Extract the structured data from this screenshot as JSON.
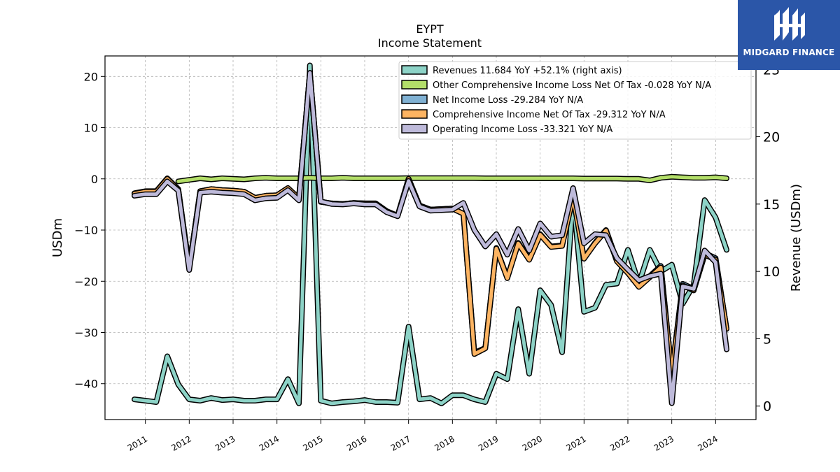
{
  "brand": {
    "name": "MIDGARD FINANCE",
    "color": "#2b56a8"
  },
  "chart_data": {
    "type": "line",
    "title": "EYPT",
    "subtitle": "Income Statement",
    "ylabel": "USDm",
    "ylabel_right": "Revenue (USDm)",
    "ylim": [
      -47,
      24
    ],
    "ylim_right": [
      -1,
      26
    ],
    "yticks": [
      -40,
      -30,
      -20,
      -10,
      0,
      10,
      20
    ],
    "yticks_right": [
      0,
      5,
      10,
      15,
      20,
      25
    ],
    "xlim": [
      2010.08,
      2024.92
    ],
    "xticks": [
      2011,
      2012,
      2013,
      2014,
      2015,
      2016,
      2017,
      2018,
      2019,
      2020,
      2021,
      2022,
      2023,
      2024
    ],
    "grid": true,
    "legend_position": "top-right",
    "series": [
      {
        "name": "Revenues  11.684 YoY +52.1% (right axis)",
        "axis": "right",
        "color": "#8dd3c7",
        "x": [
          2010.75,
          2011.0,
          2011.25,
          2011.5,
          2011.75,
          2012.0,
          2012.25,
          2012.5,
          2012.75,
          2013.0,
          2013.25,
          2013.5,
          2013.75,
          2014.0,
          2014.25,
          2014.5,
          2014.75,
          2015.0,
          2015.25,
          2015.5,
          2015.75,
          2016.0,
          2016.25,
          2016.5,
          2016.75,
          2017.0,
          2017.25,
          2017.5,
          2017.75,
          2018.0,
          2018.25,
          2018.5,
          2018.75,
          2019.0,
          2019.25,
          2019.5,
          2019.75,
          2020.0,
          2020.25,
          2020.5,
          2020.75,
          2021.0,
          2021.25,
          2021.5,
          2021.75,
          2022.0,
          2022.25,
          2022.5,
          2022.75,
          2023.0,
          2023.25,
          2023.5,
          2023.75,
          2024.0,
          2024.25
        ],
        "values": [
          0.5,
          0.4,
          0.3,
          3.7,
          1.6,
          0.5,
          0.4,
          0.6,
          0.45,
          0.5,
          0.4,
          0.4,
          0.5,
          0.5,
          2.0,
          0.2,
          25.3,
          0.4,
          0.2,
          0.3,
          0.35,
          0.45,
          0.3,
          0.3,
          0.25,
          5.9,
          0.5,
          0.6,
          0.2,
          0.8,
          0.8,
          0.5,
          0.3,
          2.4,
          2.0,
          7.2,
          2.4,
          8.6,
          7.5,
          4.0,
          15.5,
          7.0,
          7.3,
          9.0,
          9.1,
          11.6,
          9.1,
          11.6,
          10.0,
          10.5,
          7.6,
          9.0,
          15.3,
          14.0,
          11.6
        ]
      },
      {
        "name": "Other Comprehensive Income Loss Net Of Tax  -0.028 YoY N/A",
        "axis": "left",
        "color": "#b3de69",
        "x": [
          2011.75,
          2012.0,
          2012.25,
          2012.5,
          2012.75,
          2013.0,
          2013.25,
          2013.5,
          2013.75,
          2014.0,
          2014.25,
          2014.5,
          2014.75,
          2015.0,
          2015.25,
          2015.5,
          2015.75,
          2016.0,
          2016.25,
          2016.5,
          2016.75,
          2017.0,
          2017.25,
          2017.5,
          2017.75,
          2018.0,
          2018.25,
          2018.5,
          2018.75,
          2019.0,
          2019.25,
          2019.5,
          2019.75,
          2020.0,
          2020.25,
          2020.5,
          2020.75,
          2021.0,
          2021.25,
          2021.5,
          2021.75,
          2022.0,
          2022.25,
          2022.5,
          2022.75,
          2023.0,
          2023.25,
          2023.5,
          2023.75,
          2024.0,
          2024.25
        ],
        "values": [
          -0.5,
          -0.2,
          0.1,
          -0.1,
          0.1,
          0.0,
          -0.1,
          0.1,
          0.2,
          0.1,
          0.1,
          0.1,
          0.2,
          0.1,
          0.1,
          0.2,
          0.1,
          0.1,
          0.1,
          0.1,
          0.1,
          0.15,
          0.15,
          0.15,
          0.15,
          0.15,
          0.15,
          0.15,
          0.1,
          0.1,
          0.1,
          0.1,
          0.1,
          0.1,
          0.1,
          0.1,
          0.1,
          0.05,
          0.05,
          0.05,
          0.05,
          0.0,
          0.0,
          -0.3,
          0.2,
          0.4,
          0.3,
          0.2,
          0.2,
          0.3,
          0.1
        ]
      },
      {
        "name": "Net Income Loss  -29.284 YoY N/A",
        "axis": "left",
        "color": "#80b1d3",
        "x": [
          2010.75,
          2011.0,
          2011.25,
          2011.5,
          2011.75,
          2012.0,
          2012.25,
          2012.5,
          2012.75,
          2013.0,
          2013.25,
          2013.5,
          2013.75,
          2014.0,
          2014.25,
          2014.5,
          2014.75,
          2015.0,
          2015.25,
          2015.5,
          2015.75,
          2016.0,
          2016.25,
          2016.5,
          2016.75,
          2017.0,
          2017.25,
          2017.5,
          2017.75,
          2018.0,
          2018.25,
          2018.5,
          2018.75,
          2019.0,
          2019.25,
          2019.5,
          2019.75,
          2020.0,
          2020.25,
          2020.5,
          2020.75,
          2021.0,
          2021.25,
          2021.5,
          2021.75,
          2022.0,
          2022.25,
          2022.5,
          2022.75,
          2023.0,
          2023.25,
          2023.5,
          2023.75,
          2024.0,
          2024.25
        ],
        "values": [
          -2.8,
          -2.4,
          -2.4,
          0.1,
          -2.0,
          -17.3,
          -2.4,
          -2.0,
          -2.2,
          -2.3,
          -2.5,
          -3.7,
          -3.3,
          -3.2,
          -1.8,
          -3.8,
          20.7,
          -4.5,
          -4.8,
          -4.9,
          -4.7,
          -4.8,
          -4.8,
          -6.3,
          -7.2,
          0.0,
          -5.2,
          -6.0,
          -5.9,
          -5.8,
          -6.8,
          -34.0,
          -33.0,
          -13.5,
          -19.3,
          -12.5,
          -15.7,
          -10.8,
          -13.2,
          -13.0,
          -3.4,
          -15.5,
          -12.5,
          -10.0,
          -16.0,
          -18.3,
          -21.0,
          -19.0,
          -17.0,
          -38.0,
          -20.5,
          -21.5,
          -14.5,
          -15.5,
          -29.3
        ]
      },
      {
        "name": "Comprehensive Income Net Of Tax  -29.312 YoY N/A",
        "axis": "left",
        "color": "#fdb462",
        "x": [
          2010.75,
          2011.0,
          2011.25,
          2011.5,
          2011.75,
          2012.0,
          2012.25,
          2012.5,
          2012.75,
          2013.0,
          2013.25,
          2013.5,
          2013.75,
          2014.0,
          2014.25,
          2014.5,
          2014.75,
          2015.0,
          2015.25,
          2015.5,
          2015.75,
          2016.0,
          2016.25,
          2016.5,
          2016.75,
          2017.0,
          2017.25,
          2017.5,
          2017.75,
          2018.0,
          2018.25,
          2018.5,
          2018.75,
          2019.0,
          2019.25,
          2019.5,
          2019.75,
          2020.0,
          2020.25,
          2020.5,
          2020.75,
          2021.0,
          2021.25,
          2021.5,
          2021.75,
          2022.0,
          2022.25,
          2022.5,
          2022.75,
          2023.0,
          2023.25,
          2023.5,
          2023.75,
          2024.0,
          2024.25
        ],
        "values": [
          -2.9,
          -2.5,
          -2.5,
          0.0,
          -2.1,
          -17.4,
          -2.4,
          -2.0,
          -2.2,
          -2.3,
          -2.5,
          -3.7,
          -3.3,
          -3.2,
          -1.8,
          -3.8,
          20.7,
          -4.5,
          -4.8,
          -4.9,
          -4.7,
          -4.8,
          -4.8,
          -6.3,
          -7.2,
          0.0,
          -5.2,
          -6.0,
          -5.9,
          -5.8,
          -6.8,
          -34.2,
          -33.1,
          -13.6,
          -19.4,
          -12.6,
          -15.8,
          -10.9,
          -13.3,
          -13.1,
          -3.5,
          -15.6,
          -12.6,
          -10.1,
          -16.1,
          -18.4,
          -21.1,
          -19.2,
          -17.3,
          -38.2,
          -20.8,
          -21.8,
          -14.8,
          -15.8,
          -29.3
        ]
      },
      {
        "name": "Operating Income Loss  -33.321 YoY N/A",
        "axis": "left",
        "color": "#bebada",
        "x": [
          2010.75,
          2011.0,
          2011.25,
          2011.5,
          2011.75,
          2012.0,
          2012.25,
          2012.5,
          2012.75,
          2013.0,
          2013.25,
          2013.5,
          2013.75,
          2014.0,
          2014.25,
          2014.5,
          2014.75,
          2015.0,
          2015.25,
          2015.5,
          2015.75,
          2016.0,
          2016.25,
          2016.5,
          2016.75,
          2017.0,
          2017.25,
          2017.5,
          2017.75,
          2018.0,
          2018.25,
          2018.5,
          2018.75,
          2019.0,
          2019.25,
          2019.5,
          2019.75,
          2020.0,
          2020.25,
          2020.5,
          2020.75,
          2021.0,
          2021.25,
          2021.5,
          2021.75,
          2022.0,
          2022.25,
          2022.5,
          2022.75,
          2023.0,
          2023.25,
          2023.5,
          2023.75,
          2024.0,
          2024.25
        ],
        "values": [
          -3.3,
          -3.0,
          -3.0,
          -0.5,
          -2.3,
          -17.8,
          -2.7,
          -2.5,
          -2.7,
          -2.8,
          -3.0,
          -4.2,
          -3.8,
          -3.7,
          -2.2,
          -4.2,
          20.7,
          -4.4,
          -4.9,
          -5.0,
          -4.8,
          -5.0,
          -5.0,
          -6.5,
          -7.3,
          -0.4,
          -5.4,
          -6.2,
          -6.1,
          -6.0,
          -4.7,
          -10.0,
          -13.2,
          -10.8,
          -14.8,
          -9.8,
          -14.0,
          -8.7,
          -11.3,
          -11.0,
          -1.8,
          -12.6,
          -10.8,
          -11.0,
          -15.5,
          -17.7,
          -19.8,
          -19.0,
          -18.5,
          -43.8,
          -21.0,
          -21.5,
          -14.0,
          -16.3,
          -33.3
        ]
      }
    ]
  }
}
